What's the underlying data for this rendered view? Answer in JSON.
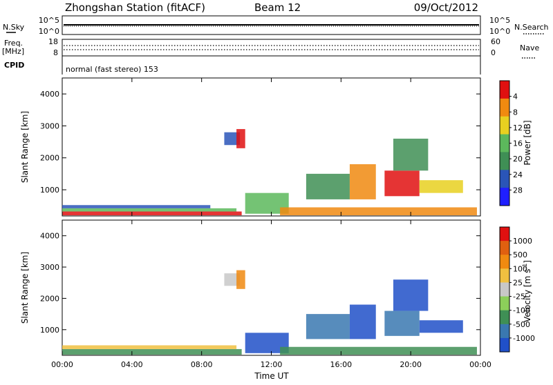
{
  "header": {
    "station": "Zhongshan Station (fitACF)",
    "beam": "Beam 12",
    "date": "09/Oct/2012"
  },
  "strips": {
    "nsky_label": "N.Sky",
    "nsky_ticks": [
      "10^5",
      "10^0"
    ],
    "nsearch_label": "N.Search",
    "nsearch_ticks": [
      "10^5",
      "10^0"
    ],
    "freq_label_line1": "Freq.",
    "freq_label_line2": "[MHz]",
    "freq_ticks": [
      "18",
      "8"
    ],
    "nave_label": "Nave",
    "nave_ticks": [
      "60",
      "0"
    ],
    "cpid_label": "CPID",
    "cpid_text": "normal (fast stereo) 153"
  },
  "chart_data": [
    {
      "type": "heatmap",
      "title": "",
      "xlabel": "Time UT",
      "ylabel": "Slant Range [km]",
      "x_ticks": [
        "00:00",
        "04:00",
        "08:00",
        "12:00",
        "16:00",
        "20:00",
        "00:00"
      ],
      "y_ticks": [
        1000,
        2000,
        3000,
        4000
      ],
      "xlim_hours": [
        0,
        24
      ],
      "ylim_km": [
        180,
        4500
      ],
      "colorbar": {
        "label": "Power [dB]",
        "ticks": [
          "4",
          "8",
          "12",
          "16",
          "20",
          "24",
          "28"
        ],
        "colors": [
          "#1f1fff",
          "#2a55b8",
          "#3f8f55",
          "#5cb85c",
          "#e8d020",
          "#f08a10",
          "#e01010"
        ]
      },
      "regions": [
        {
          "t0": 0.0,
          "t1": 10.3,
          "r0": 200,
          "r1": 320,
          "level": 6
        },
        {
          "t0": 0.0,
          "t1": 10.0,
          "r0": 320,
          "r1": 420,
          "level": 3
        },
        {
          "t0": 0.0,
          "t1": 8.5,
          "r0": 420,
          "r1": 520,
          "level": 1
        },
        {
          "t0": 10.5,
          "t1": 13.0,
          "r0": 250,
          "r1": 900,
          "level": 3
        },
        {
          "t0": 12.5,
          "t1": 23.8,
          "r0": 200,
          "r1": 450,
          "level": 5
        },
        {
          "t0": 9.3,
          "t1": 10.2,
          "r0": 2400,
          "r1": 2800,
          "level": 1
        },
        {
          "t0": 10.0,
          "t1": 10.5,
          "r0": 2300,
          "r1": 2900,
          "level": 6
        },
        {
          "t0": 14.0,
          "t1": 16.5,
          "r0": 700,
          "r1": 1500,
          "level": 2
        },
        {
          "t0": 16.5,
          "t1": 18.0,
          "r0": 700,
          "r1": 1800,
          "level": 5
        },
        {
          "t0": 18.5,
          "t1": 20.5,
          "r0": 800,
          "r1": 1600,
          "level": 6
        },
        {
          "t0": 19.0,
          "t1": 21.0,
          "r0": 1600,
          "r1": 2600,
          "level": 2
        },
        {
          "t0": 20.5,
          "t1": 23.0,
          "r0": 900,
          "r1": 1300,
          "level": 4
        }
      ]
    },
    {
      "type": "heatmap",
      "title": "",
      "xlabel": "Time UT",
      "ylabel": "Slant Range [km]",
      "x_ticks": [
        "00:00",
        "04:00",
        "08:00",
        "12:00",
        "16:00",
        "20:00",
        "00:00"
      ],
      "y_ticks": [
        1000,
        2000,
        3000,
        4000
      ],
      "xlim_hours": [
        0,
        24
      ],
      "ylim_km": [
        180,
        4500
      ],
      "colorbar": {
        "label": "Velocity [m s-1]",
        "label_main": "Velocity [m s",
        "label_sup": "-1",
        "label_end": "]",
        "ticks": [
          "1000",
          "500",
          "100",
          "25",
          "-25",
          "-100",
          "-500",
          "-1000"
        ],
        "colors": [
          "#2050c8",
          "#3a78b0",
          "#3f8f55",
          "#8ccf5a",
          "#c8c8c8",
          "#f0c040",
          "#f08a10",
          "#e06010",
          "#e01010"
        ]
      },
      "regions": [
        {
          "t0": 0.0,
          "t1": 10.3,
          "r0": 200,
          "r1": 380,
          "level": 2
        },
        {
          "t0": 0.0,
          "t1": 10.0,
          "r0": 380,
          "r1": 500,
          "level": 5
        },
        {
          "t0": 10.5,
          "t1": 13.0,
          "r0": 250,
          "r1": 900,
          "level": 0
        },
        {
          "t0": 12.5,
          "t1": 23.8,
          "r0": 200,
          "r1": 450,
          "level": 2
        },
        {
          "t0": 9.3,
          "t1": 10.2,
          "r0": 2400,
          "r1": 2800,
          "level": 4
        },
        {
          "t0": 10.0,
          "t1": 10.5,
          "r0": 2300,
          "r1": 2900,
          "level": 6
        },
        {
          "t0": 14.0,
          "t1": 16.5,
          "r0": 700,
          "r1": 1500,
          "level": 1
        },
        {
          "t0": 16.5,
          "t1": 18.0,
          "r0": 700,
          "r1": 1800,
          "level": 0
        },
        {
          "t0": 18.5,
          "t1": 20.5,
          "r0": 800,
          "r1": 1600,
          "level": 1
        },
        {
          "t0": 19.0,
          "t1": 21.0,
          "r0": 1600,
          "r1": 2600,
          "level": 0
        },
        {
          "t0": 20.5,
          "t1": 23.0,
          "r0": 900,
          "r1": 1300,
          "level": 0
        }
      ]
    }
  ]
}
